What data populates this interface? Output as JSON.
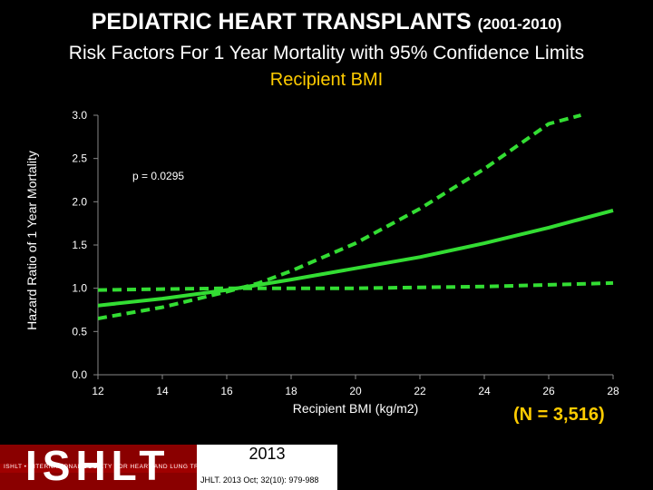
{
  "header": {
    "title_main": "PEDIATRIC HEART TRANSPLANTS",
    "title_years": "(2001-2010)",
    "subtitle": "Risk Factors For 1 Year Mortality with 95% Confidence Limits",
    "variable": "Recipient BMI"
  },
  "colors": {
    "curve": "#33dd33",
    "accent": "#ffcc00",
    "background": "#000000"
  },
  "chart_data": {
    "type": "line",
    "xlabel": "Recipient BMI (kg/m2)",
    "ylabel": "Hazard Ratio of 1 Year Mortality",
    "xlim": [
      12,
      28
    ],
    "ylim": [
      0,
      3
    ],
    "x_ticks": [
      "12",
      "14",
      "16",
      "18",
      "20",
      "22",
      "24",
      "26",
      "28"
    ],
    "y_ticks": [
      "0.0",
      "0.5",
      "1.0",
      "1.5",
      "2.0",
      "2.5",
      "3.0"
    ],
    "annotation": "p = 0.0295",
    "grid": false,
    "series": [
      {
        "style": "solid",
        "x": [
          12,
          14,
          16,
          18,
          20,
          22,
          24,
          26,
          28
        ],
        "y": [
          0.8,
          0.88,
          0.98,
          1.1,
          1.23,
          1.36,
          1.52,
          1.7,
          1.9
        ]
      },
      {
        "style": "dashed",
        "x": [
          12,
          14,
          16,
          18,
          20,
          22,
          24,
          26,
          28
        ],
        "y": [
          0.98,
          0.99,
          1.0,
          1.0,
          1.0,
          1.01,
          1.02,
          1.04,
          1.06
        ]
      },
      {
        "style": "dashed",
        "x": [
          12,
          14,
          16,
          17,
          18,
          20,
          22,
          24,
          26,
          27
        ],
        "y": [
          0.65,
          0.78,
          0.96,
          1.06,
          1.2,
          1.52,
          1.92,
          2.38,
          2.9,
          3.0
        ]
      }
    ]
  },
  "sample_size": "(N = 3,516)",
  "footer": {
    "logo": "ISHLT",
    "logo_tagline": "ISHLT • INTERNATIONAL SOCIETY FOR HEART AND LUNG TRANSPLANTATION",
    "year": "2013",
    "citation": "JHLT. 2013 Oct; 32(10): 979-988"
  }
}
